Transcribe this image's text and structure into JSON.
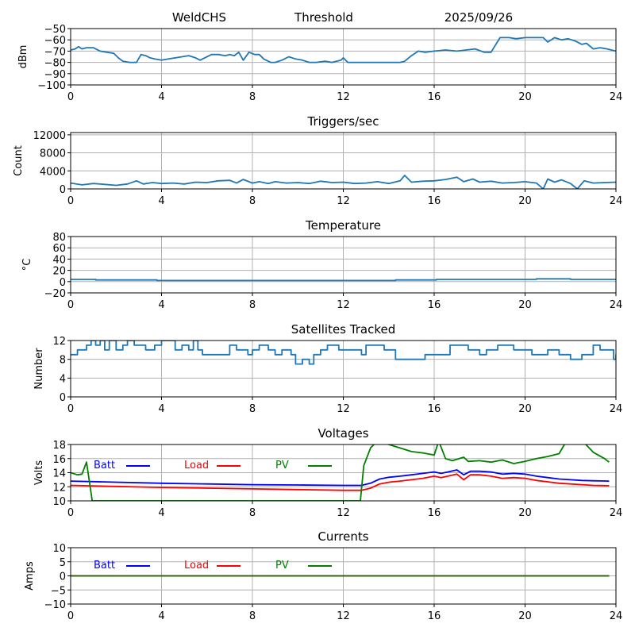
{
  "header": {
    "station": "WeldCHS",
    "mode": "Threshold",
    "date": "2025/09/26"
  },
  "chart_data": [
    {
      "id": "signal",
      "type": "line",
      "title": "",
      "xlabel": "",
      "ylabel": "dBm",
      "xlim": [
        0,
        24
      ],
      "ylim": [
        -100,
        -50
      ],
      "xticks": [
        0,
        4,
        8,
        12,
        16,
        20,
        24
      ],
      "yticks": [
        -50,
        -60,
        -70,
        -80,
        -90,
        -100
      ],
      "ytick_labels": [
        "−50",
        "−60",
        "−70",
        "−80",
        "−90",
        "−100"
      ],
      "grid": true,
      "series": [
        {
          "name": "Threshold",
          "color": "#1f77b4",
          "x": [
            0,
            0.2,
            0.35,
            0.5,
            0.7,
            1.0,
            1.3,
            1.6,
            1.9,
            2.1,
            2.3,
            2.6,
            2.9,
            3.1,
            3.3,
            3.5,
            3.7,
            4.0,
            4.3,
            4.6,
            4.9,
            5.2,
            5.5,
            5.7,
            5.9,
            6.2,
            6.5,
            6.8,
            7.0,
            7.2,
            7.4,
            7.6,
            7.85,
            8.1,
            8.3,
            8.5,
            8.8,
            9.0,
            9.3,
            9.6,
            9.9,
            10.2,
            10.5,
            10.8,
            11.2,
            11.5,
            11.9,
            12.0,
            12.2,
            12.6,
            13.0,
            13.5,
            14.0,
            14.5,
            14.7,
            15.0,
            15.3,
            15.6,
            16.0,
            16.5,
            17.0,
            17.4,
            17.8,
            18.2,
            18.5,
            18.9,
            19.3,
            19.6,
            20.0,
            20.4,
            20.8,
            21.0,
            21.3,
            21.6,
            21.9,
            22.2,
            22.5,
            22.7,
            23.0,
            23.3,
            23.6,
            24.0
          ],
          "y": [
            -69,
            -68,
            -66,
            -68,
            -67,
            -67,
            -70,
            -71,
            -72,
            -76,
            -79,
            -80,
            -80,
            -73,
            -74,
            -76,
            -77,
            -78,
            -77,
            -76,
            -75,
            -74,
            -76,
            -78,
            -76,
            -73,
            -73,
            -74,
            -73,
            -74,
            -71,
            -78,
            -71,
            -73,
            -73,
            -77,
            -80,
            -80,
            -78,
            -75,
            -77,
            -78,
            -80,
            -80,
            -79,
            -80,
            -78,
            -76,
            -80,
            -80,
            -80,
            -80,
            -80,
            -80,
            -79,
            -74,
            -70,
            -71,
            -70,
            -69,
            -70,
            -69,
            -68,
            -71,
            -71,
            -58,
            -58,
            -59,
            -58,
            -58,
            -58,
            -62,
            -58,
            -60,
            -59,
            -61,
            -64,
            -63,
            -68,
            -67,
            -68,
            -70
          ]
        }
      ]
    },
    {
      "id": "triggers",
      "type": "line",
      "title": "Triggers/sec",
      "xlabel": "",
      "ylabel": "Count",
      "xlim": [
        0,
        24
      ],
      "ylim": [
        0,
        12500
      ],
      "xticks": [
        0,
        4,
        8,
        12,
        16,
        20,
        24
      ],
      "yticks": [
        0,
        4000,
        8000,
        12000
      ],
      "ytick_labels": [
        "0",
        "4000",
        "8000",
        "12000"
      ],
      "grid": true,
      "series": [
        {
          "name": "Triggers",
          "color": "#1f77b4",
          "x": [
            0,
            0.5,
            1,
            1.5,
            2,
            2.5,
            2.9,
            3.2,
            3.6,
            4,
            4.5,
            5,
            5.5,
            6,
            6.5,
            7,
            7.3,
            7.6,
            8,
            8.3,
            8.7,
            9,
            9.5,
            10,
            10.5,
            11,
            11.5,
            12,
            12.5,
            13,
            13.5,
            14,
            14.5,
            14.7,
            15,
            15.5,
            16,
            16.5,
            17,
            17.3,
            17.7,
            18,
            18.5,
            19,
            19.5,
            20,
            20.5,
            20.8,
            21,
            21.3,
            21.6,
            22,
            22.3,
            22.6,
            23,
            23.5,
            24
          ],
          "y": [
            1300,
            900,
            1200,
            1000,
            800,
            1100,
            1800,
            1100,
            1400,
            1200,
            1300,
            1100,
            1500,
            1400,
            1800,
            1900,
            1300,
            2100,
            1300,
            1600,
            1200,
            1600,
            1300,
            1400,
            1200,
            1700,
            1400,
            1500,
            1200,
            1300,
            1600,
            1200,
            1800,
            3000,
            1500,
            1700,
            1800,
            2100,
            2600,
            1600,
            2200,
            1500,
            1700,
            1300,
            1400,
            1600,
            1300,
            0,
            2200,
            1500,
            2000,
            1200,
            0,
            1800,
            1300,
            1400,
            1500
          ]
        }
      ]
    },
    {
      "id": "temperature",
      "type": "line",
      "title": "Temperature",
      "xlabel": "",
      "ylabel": "°C",
      "xlim": [
        0,
        24
      ],
      "ylim": [
        -20,
        80
      ],
      "xticks": [
        0,
        4,
        8,
        12,
        16,
        20,
        24
      ],
      "yticks": [
        -20,
        0,
        20,
        40,
        60,
        80
      ],
      "ytick_labels": [
        "−20",
        "0",
        "20",
        "40",
        "60",
        "80"
      ],
      "grid": true,
      "series": [
        {
          "name": "Temperature",
          "color": "#1f77b4",
          "step": true,
          "x": [
            0,
            1.1,
            3.8,
            14.3,
            16.1,
            20.5,
            22.0,
            24
          ],
          "y": [
            4,
            3,
            2,
            3,
            4,
            5,
            4,
            4
          ]
        }
      ]
    },
    {
      "id": "satellites",
      "type": "line",
      "title": "Satellites Tracked",
      "xlabel": "",
      "ylabel": "Number",
      "xlim": [
        0,
        24
      ],
      "ylim": [
        0,
        12
      ],
      "xticks": [
        0,
        4,
        8,
        12,
        16,
        20,
        24
      ],
      "yticks": [
        0,
        4,
        8,
        12
      ],
      "ytick_labels": [
        "0",
        "4",
        "8",
        "12"
      ],
      "grid": true,
      "series": [
        {
          "name": "Satellites",
          "color": "#1f77b4",
          "step": true,
          "x": [
            0,
            0.3,
            0.7,
            0.9,
            1.1,
            1.3,
            1.5,
            1.7,
            2.0,
            2.3,
            2.5,
            2.8,
            3.3,
            3.7,
            4.0,
            4.3,
            4.6,
            4.9,
            5.2,
            5.4,
            5.6,
            5.8,
            6.0,
            6.3,
            6.8,
            7.0,
            7.3,
            7.8,
            8.0,
            8.3,
            8.7,
            9.0,
            9.3,
            9.7,
            9.9,
            10.2,
            10.5,
            10.7,
            11.0,
            11.3,
            11.5,
            11.8,
            12.2,
            12.8,
            13.0,
            13.4,
            13.8,
            14.0,
            14.3,
            15.5,
            15.6,
            16.0,
            16.5,
            16.7,
            17.0,
            17.5,
            18.0,
            18.3,
            18.8,
            19.3,
            19.5,
            19.8,
            20.3,
            20.6,
            21.0,
            21.5,
            22.0,
            22.5,
            22.9,
            23.0,
            23.3,
            23.6,
            23.9,
            24
          ],
          "y": [
            9,
            10,
            11,
            12,
            11,
            12,
            10,
            12,
            10,
            11,
            12,
            11,
            10,
            11,
            12,
            12,
            10,
            11,
            10,
            12,
            10,
            9,
            9,
            9,
            9,
            11,
            10,
            9,
            10,
            11,
            10,
            9,
            10,
            9,
            7,
            8,
            7,
            9,
            10,
            11,
            11,
            10,
            10,
            9,
            11,
            11,
            10,
            10,
            8,
            8,
            9,
            9,
            9,
            11,
            11,
            10,
            9,
            10,
            11,
            11,
            10,
            10,
            9,
            9,
            10,
            9,
            8,
            9,
            9,
            11,
            10,
            10,
            8,
            9
          ]
        }
      ]
    },
    {
      "id": "voltages",
      "type": "line",
      "title": "Voltages",
      "xlabel": "",
      "ylabel": "Volts",
      "xlim": [
        0,
        24
      ],
      "ylim": [
        10,
        18
      ],
      "xticks": [
        0,
        4,
        8,
        12,
        16,
        20,
        24
      ],
      "yticks": [
        10,
        12,
        14,
        16,
        18
      ],
      "ytick_labels": [
        "10",
        "12",
        "14",
        "16",
        "18"
      ],
      "grid": true,
      "legend": "top-left-inline",
      "series": [
        {
          "name": "Batt",
          "color": "#0000ff",
          "x": [
            0,
            2,
            4,
            6,
            8,
            10,
            12,
            12.8,
            13.2,
            13.6,
            14.0,
            14.5,
            15.0,
            15.5,
            16.0,
            16.3,
            16.6,
            17.0,
            17.3,
            17.6,
            18.0,
            18.5,
            19.0,
            19.5,
            20.0,
            20.5,
            21.0,
            21.5,
            22.0,
            22.5,
            23.0,
            23.7
          ],
          "y": [
            12.8,
            12.65,
            12.5,
            12.4,
            12.3,
            12.25,
            12.2,
            12.2,
            12.5,
            13.1,
            13.35,
            13.5,
            13.7,
            13.9,
            14.1,
            13.9,
            14.1,
            14.4,
            13.7,
            14.2,
            14.2,
            14.1,
            13.8,
            13.9,
            13.8,
            13.5,
            13.3,
            13.1,
            13.0,
            12.9,
            12.85,
            12.8
          ]
        },
        {
          "name": "Load",
          "color": "#ff0000",
          "x": [
            0,
            2,
            4,
            6,
            8,
            10,
            12,
            12.8,
            13.2,
            13.6,
            14.0,
            14.5,
            15.0,
            15.5,
            16.0,
            16.3,
            16.6,
            17.0,
            17.3,
            17.6,
            18.0,
            18.5,
            19.0,
            19.5,
            20.0,
            20.5,
            21.0,
            21.5,
            22.0,
            22.5,
            23.0,
            23.7
          ],
          "y": [
            12.2,
            12.05,
            11.9,
            11.8,
            11.7,
            11.6,
            11.5,
            11.5,
            11.8,
            12.4,
            12.65,
            12.8,
            13.0,
            13.2,
            13.5,
            13.3,
            13.5,
            13.8,
            13.0,
            13.7,
            13.7,
            13.5,
            13.2,
            13.3,
            13.2,
            12.9,
            12.7,
            12.5,
            12.4,
            12.3,
            12.2,
            12.15
          ]
        },
        {
          "name": "PV",
          "color": "#008000",
          "x": [
            0,
            0.3,
            0.5,
            0.7,
            0.95,
            12.75,
            12.9,
            13.2,
            13.5,
            14.0,
            14.5,
            15.0,
            15.5,
            16.0,
            16.2,
            16.5,
            16.8,
            17.3,
            17.5,
            18.0,
            18.5,
            19.0,
            19.5,
            20.0,
            20.5,
            21.0,
            21.5,
            22.0,
            22.5,
            23.0,
            23.5,
            23.7
          ],
          "y": [
            14.0,
            13.7,
            13.8,
            15.5,
            10.0,
            10.0,
            15.0,
            17.5,
            18.5,
            18.0,
            17.5,
            17.0,
            16.8,
            16.5,
            18.5,
            16.0,
            15.7,
            16.2,
            15.6,
            15.7,
            15.5,
            15.8,
            15.3,
            15.6,
            16.0,
            16.3,
            16.7,
            19.5,
            18.6,
            16.9,
            16.0,
            15.5
          ]
        }
      ]
    },
    {
      "id": "currents",
      "type": "line",
      "title": "Currents",
      "xlabel": "",
      "ylabel": "Amps",
      "xlim": [
        0,
        24
      ],
      "ylim": [
        -10,
        10
      ],
      "xticks": [
        0,
        4,
        8,
        12,
        16,
        20,
        24
      ],
      "yticks": [
        -10,
        -5,
        0,
        5,
        10
      ],
      "ytick_labels": [
        "−10",
        "−5",
        "0",
        "5",
        "10"
      ],
      "grid": true,
      "legend": "top-left-inline",
      "series": [
        {
          "name": "Batt",
          "color": "#0000ff",
          "x": [
            0,
            23.7
          ],
          "y": [
            0,
            0
          ]
        },
        {
          "name": "Load",
          "color": "#ff0000",
          "x": [
            0,
            23.7
          ],
          "y": [
            0,
            0
          ]
        },
        {
          "name": "PV",
          "color": "#008000",
          "x": [
            0,
            23.7
          ],
          "y": [
            0,
            0
          ]
        }
      ]
    }
  ]
}
